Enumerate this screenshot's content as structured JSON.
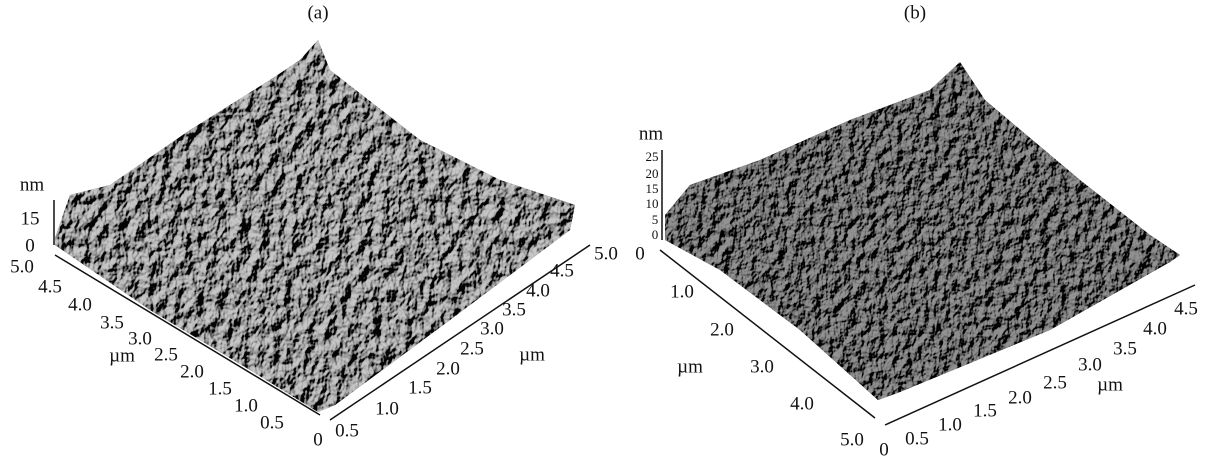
{
  "panels": [
    {
      "label": "(a)",
      "z_unit": "nm",
      "z_ticks": [
        "15",
        "0"
      ],
      "left_axis_unit": "µm",
      "left_axis_ticks": [
        "5.0",
        "4.5",
        "4.0",
        "3.5",
        "3.0",
        "2.5",
        "2.0",
        "1.5",
        "1.0",
        "0.5",
        "0"
      ],
      "right_axis_unit": "µm",
      "right_axis_ticks": [
        "0.5",
        "1.0",
        "1.5",
        "2.0",
        "2.5",
        "3.0",
        "3.5",
        "4.0",
        "4.5",
        "5.0"
      ]
    },
    {
      "label": "(b)",
      "z_unit": "nm",
      "z_ticks": [
        "25",
        "20",
        "15",
        "10",
        "5",
        "0"
      ],
      "left_axis_unit": "µm",
      "left_axis_ticks": [
        "0",
        "1.0",
        "2.0",
        "3.0",
        "4.0",
        "5.0"
      ],
      "right_axis_unit": "µm",
      "right_axis_ticks": [
        "0",
        "0.5",
        "1.0",
        "1.5",
        "2.0",
        "2.5",
        "3.0",
        "3.5",
        "4.0",
        "4.5"
      ]
    }
  ]
}
